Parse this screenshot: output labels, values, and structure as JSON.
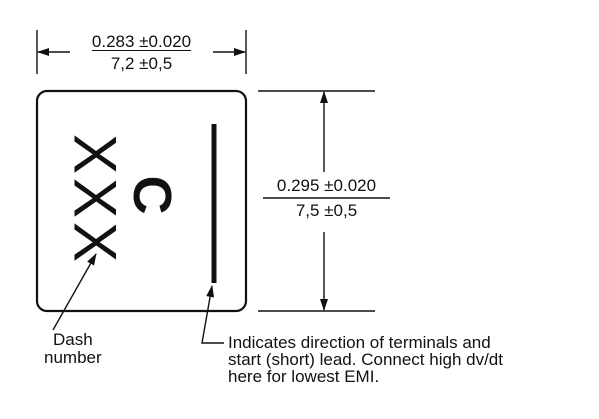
{
  "width_dimension": {
    "imperial": "0.283 ±0.020",
    "metric": "7,2 ±0,5"
  },
  "height_dimension": {
    "imperial": "0.295 ±0.020",
    "metric": "7,5 ±0,5"
  },
  "marking": {
    "dash_number_text": "XXX",
    "letter": "C"
  },
  "dash_label": {
    "line1": "Dash",
    "line2": "number"
  },
  "note": {
    "line1": "Indicates direction of terminals and",
    "line2": "start (short) lead. Connect high dv/dt",
    "line3": "here for lowest EMI."
  }
}
